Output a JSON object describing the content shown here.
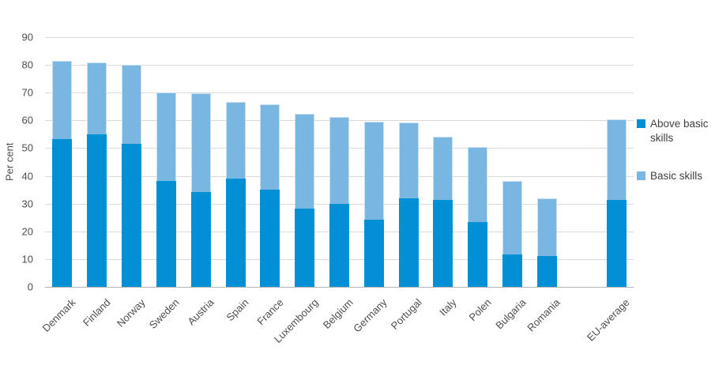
{
  "chart_data": {
    "type": "bar",
    "stacked": true,
    "title": "",
    "ylabel": "Per cent",
    "xlabel": "",
    "ylim": [
      0,
      90
    ],
    "yticks": [
      0,
      10,
      20,
      30,
      40,
      50,
      60,
      70,
      80,
      90
    ],
    "grid": true,
    "legend_position": "right",
    "gap_before_last": true,
    "categories": [
      "Denmark",
      "Finland",
      "Norway",
      "Sweden",
      "Austria",
      "Spain",
      "France",
      "Luxembourg",
      "Belgium",
      "Germany",
      "Portugal",
      "Italy",
      "Polen",
      "Bulgaria",
      "Romania",
      "EU-average"
    ],
    "series": [
      {
        "name": "Above basic skills",
        "color": "#0090d3",
        "values": [
          53.2,
          55.1,
          51.5,
          38.1,
          34.3,
          39.0,
          35.0,
          28.1,
          29.8,
          24.1,
          32.0,
          31.4,
          23.4,
          11.8,
          11.0,
          31.4
        ]
      },
      {
        "name": "Basic skills",
        "color": "#79b6e2",
        "values": [
          28.2,
          25.8,
          28.4,
          31.9,
          35.4,
          27.6,
          30.8,
          34.2,
          31.5,
          35.4,
          27.2,
          22.8,
          27.0,
          26.5,
          20.9,
          28.9
        ]
      }
    ],
    "totals": [
      81.4,
      80.9,
      79.9,
      70.0,
      69.7,
      66.6,
      65.8,
      62.3,
      61.3,
      59.5,
      59.2,
      54.2,
      50.4,
      38.3,
      31.9,
      60.3
    ]
  },
  "colors": {
    "above_basic": "#0090d3",
    "basic": "#79b6e2",
    "gridline": "#dcdad5",
    "axis": "#b3b3b3",
    "text": "#4d4d4d"
  }
}
